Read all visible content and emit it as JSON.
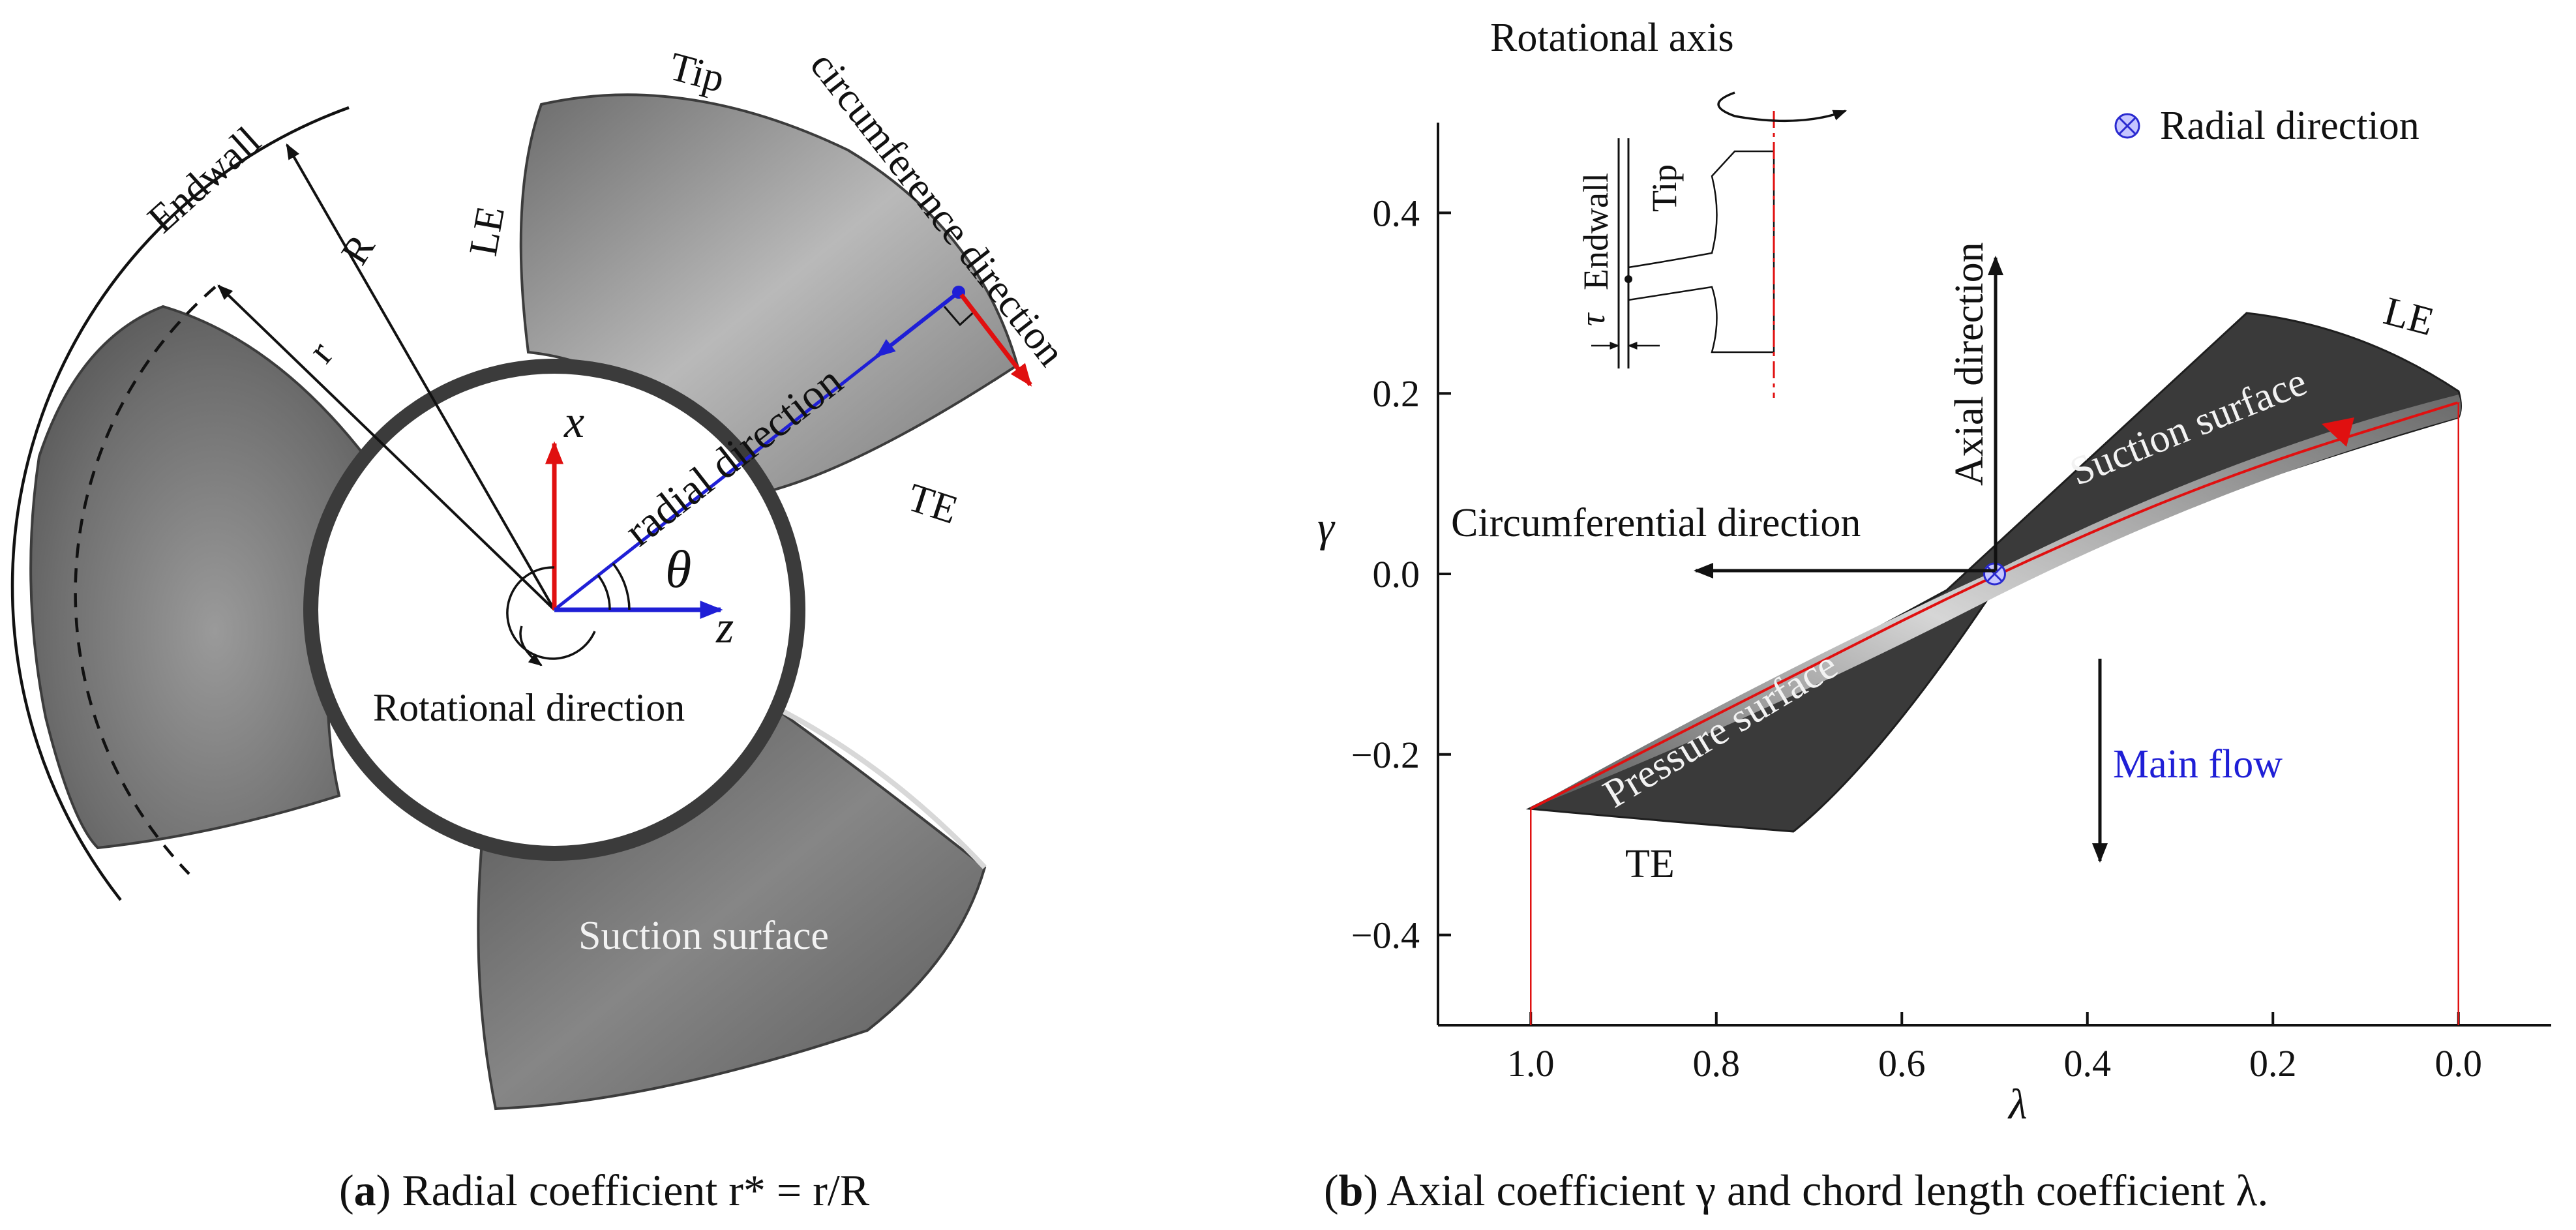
{
  "panel_a": {
    "labels": {
      "tip": "Tip",
      "circumference": "circumference direction",
      "endwall": "Endwall",
      "R": "R",
      "r": "r",
      "le": "LE",
      "te": "TE",
      "radial": "radial direction",
      "x": "x",
      "z": "z",
      "theta": "θ",
      "rotational": "Rotational direction",
      "suction": "Suction surface"
    },
    "caption": {
      "letter": "a",
      "text": "Radial coefficient r* = r/R"
    }
  },
  "panel_b": {
    "labels": {
      "rot_axis": "Rotational axis",
      "radial_legend": "Radial direction",
      "inset_endwall": "Endwall",
      "inset_tip": "Tip",
      "inset_tau": "τ",
      "le": "LE",
      "te": "TE",
      "axial": "Axial direction",
      "circumferential": "Circumferential direction",
      "suction": "Suction surface",
      "pressure": "Pressure surface",
      "main_flow": "Main flow"
    },
    "caption": {
      "letter": "b",
      "text": "Axial coefficient γ and chord length coefficient λ."
    },
    "colors": {
      "main_flow": "#1f1fd6",
      "camber": "#e01010",
      "marker": "#2a2ad0"
    }
  },
  "chart_data": {
    "type": "scatter",
    "xlabel": "λ",
    "ylabel": "γ",
    "xlim": [
      1.1,
      -0.1
    ],
    "ylim": [
      -0.5,
      0.5
    ],
    "xticks": [
      1.0,
      0.8,
      0.6,
      0.4,
      0.2,
      0.0
    ],
    "yticks": [
      0.4,
      0.2,
      0.0,
      -0.2,
      -0.4
    ],
    "xtick_labels": [
      "1.0",
      "0.8",
      "0.6",
      "0.4",
      "0.2",
      "0.0"
    ],
    "ytick_labels": [
      "0.4",
      "0.2",
      "0.0",
      "−0.2",
      "−0.4"
    ],
    "series": [
      {
        "name": "camber line",
        "x": [
          1.0,
          0.75,
          0.5,
          0.25,
          0.0
        ],
        "y": [
          -0.26,
          -0.13,
          0.0,
          0.11,
          0.19
        ]
      }
    ],
    "points": [
      {
        "name": "TE",
        "x": 1.0,
        "y": -0.26
      },
      {
        "name": "LE",
        "x": 0.0,
        "y": 0.19
      },
      {
        "name": "Radial direction",
        "x": 0.5,
        "y": 0.0
      }
    ]
  }
}
